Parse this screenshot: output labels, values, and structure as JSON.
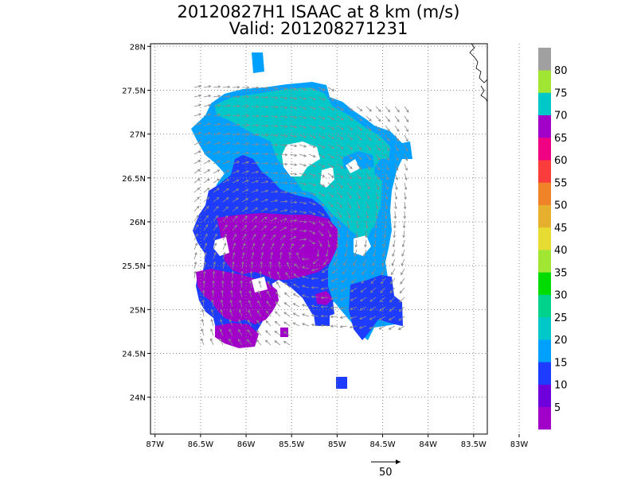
{
  "title": {
    "line1": "20120827H1 ISAAC at 8 km (m/s)",
    "line2": "Valid: 201208271231"
  },
  "axes": {
    "lat_ticks": [
      {
        "value": 28,
        "label": "28N"
      },
      {
        "value": 27.5,
        "label": "27.5N"
      },
      {
        "value": 27,
        "label": "27N"
      },
      {
        "value": 26.5,
        "label": "26.5N"
      },
      {
        "value": 26,
        "label": "26N"
      },
      {
        "value": 25.5,
        "label": "25.5N"
      },
      {
        "value": 25,
        "label": "25N"
      },
      {
        "value": 24.5,
        "label": "24.5N"
      },
      {
        "value": 24,
        "label": "24N"
      }
    ],
    "lon_ticks": [
      {
        "value": -87,
        "label": "87W"
      },
      {
        "value": -86.5,
        "label": "86.5W"
      },
      {
        "value": -86,
        "label": "86W"
      },
      {
        "value": -85.5,
        "label": "85.5W"
      },
      {
        "value": -85,
        "label": "85W"
      },
      {
        "value": -84.5,
        "label": "84.5W"
      },
      {
        "value": -84,
        "label": "84W"
      },
      {
        "value": -83.5,
        "label": "83.5W"
      },
      {
        "value": -83,
        "label": "83W"
      }
    ],
    "lon_range": [
      -87.05,
      -83.35
    ],
    "lat_range": [
      23.58,
      28.03
    ]
  },
  "colorbar": {
    "labels": [
      "5",
      "10",
      "15",
      "20",
      "25",
      "30",
      "35",
      "40",
      "45",
      "50",
      "55",
      "60",
      "65",
      "70",
      "75",
      "80"
    ],
    "colors": [
      "#a000c8",
      "#6e00dc",
      "#1e3cff",
      "#00a0ff",
      "#00c8c8",
      "#00d28c",
      "#00dc00",
      "#a0e632",
      "#e6dc32",
      "#e6af2d",
      "#f08228",
      "#fa3c3c",
      "#f00082",
      "#a000c8",
      "#00c8c8",
      "#a0e632",
      "#a0a0a0"
    ]
  },
  "scale_vector": {
    "label": "50"
  },
  "map_colors": {
    "c5": "#a000c8",
    "c10": "#6e00dc",
    "c15": "#1e3cff",
    "c20": "#00a0ff",
    "c25": "#00c8c8",
    "c30": "#00d28c"
  }
}
